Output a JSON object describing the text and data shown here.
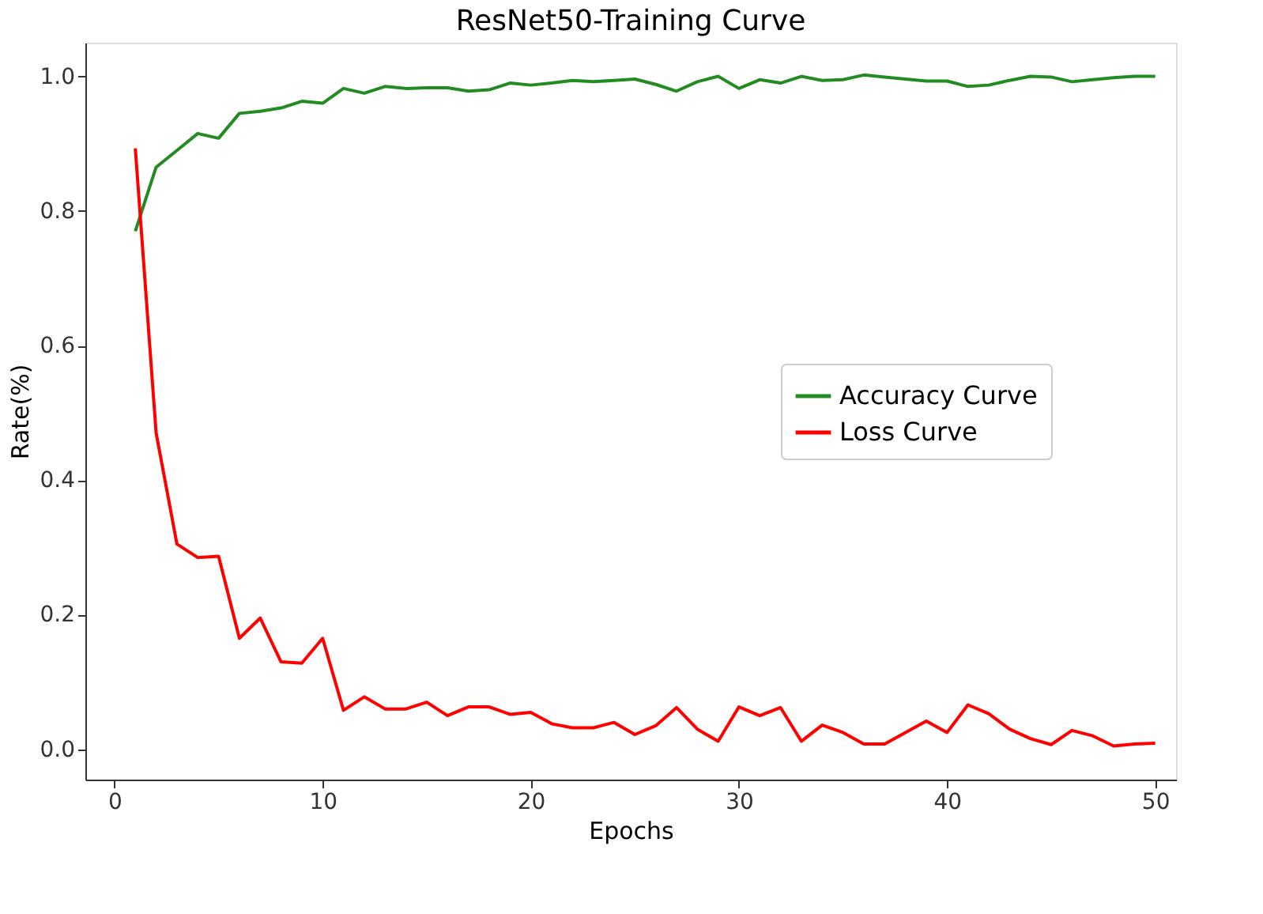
{
  "chart_data": {
    "type": "line",
    "title": "ResNet50-Training Curve",
    "xlabel": "Epochs",
    "ylabel": "Rate(%)",
    "x": [
      1,
      2,
      3,
      4,
      5,
      6,
      7,
      8,
      9,
      10,
      11,
      12,
      13,
      14,
      15,
      16,
      17,
      18,
      19,
      20,
      21,
      22,
      23,
      24,
      25,
      26,
      27,
      28,
      29,
      30,
      31,
      32,
      33,
      34,
      35,
      36,
      37,
      38,
      39,
      40,
      41,
      42,
      43,
      44,
      45,
      46,
      47,
      48,
      49,
      50
    ],
    "series": [
      {
        "name": "Accuracy Curve",
        "color": "#228b22",
        "values": [
          0.77,
          0.865,
          0.89,
          0.915,
          0.908,
          0.945,
          0.948,
          0.953,
          0.963,
          0.96,
          0.982,
          0.975,
          0.985,
          0.982,
          0.983,
          0.983,
          0.978,
          0.98,
          0.99,
          0.987,
          0.99,
          0.994,
          0.992,
          0.994,
          0.996,
          0.988,
          0.978,
          0.992,
          1.0,
          0.982,
          0.995,
          0.99,
          1.0,
          0.994,
          0.995,
          1.002,
          0.999,
          0.996,
          0.993,
          0.993,
          0.985,
          0.987,
          0.994,
          1.0,
          0.999,
          0.992,
          0.995,
          0.998,
          1.0,
          1.0
        ]
      },
      {
        "name": "Loss Curve",
        "color": "#ff0000",
        "values": [
          0.893,
          0.47,
          0.305,
          0.285,
          0.287,
          0.165,
          0.195,
          0.13,
          0.128,
          0.165,
          0.058,
          0.078,
          0.06,
          0.06,
          0.07,
          0.05,
          0.063,
          0.063,
          0.052,
          0.055,
          0.038,
          0.032,
          0.032,
          0.04,
          0.022,
          0.035,
          0.062,
          0.03,
          0.012,
          0.063,
          0.05,
          0.062,
          0.012,
          0.036,
          0.025,
          0.008,
          0.008,
          0.025,
          0.042,
          0.025,
          0.066,
          0.053,
          0.03,
          0.016,
          0.007,
          0.028,
          0.02,
          0.005,
          0.008,
          0.009
        ]
      }
    ],
    "xlim": [
      -1.4,
      51.0
    ],
    "xticks": [
      0,
      10,
      20,
      30,
      40,
      50
    ],
    "ylim": [
      -0.045,
      1.05
    ],
    "yticks": [
      {
        "value": 0,
        "label": "0.0"
      },
      {
        "value": 0.2,
        "label": "0.2"
      },
      {
        "value": 0.4,
        "label": "0.4"
      },
      {
        "value": 0.6,
        "label": "0.6"
      },
      {
        "value": 0.8,
        "label": "0.8"
      },
      {
        "value": 1,
        "label": "1.0"
      }
    ],
    "grid": false,
    "legend": "right",
    "marker": "none",
    "line_style": "solid"
  }
}
